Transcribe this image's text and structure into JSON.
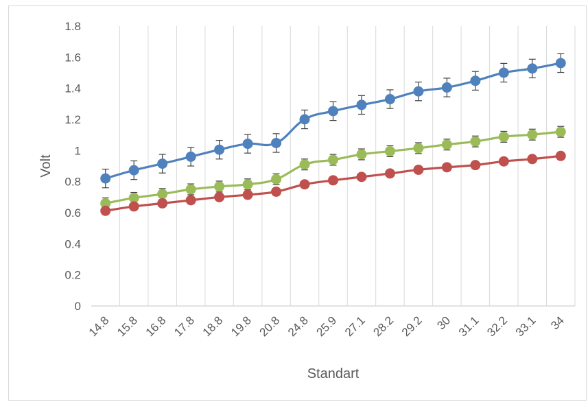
{
  "chart_data": {
    "type": "line",
    "title": "",
    "xlabel": "Standart",
    "ylabel": "Volt",
    "categories": [
      "14.8",
      "15.8",
      "16.8",
      "17.8",
      "18.8",
      "19.8",
      "20.8",
      "24.8",
      "25.9",
      "27.1",
      "28.2",
      "29.2",
      "30",
      "31.1",
      "32.2",
      "33.1",
      "34"
    ],
    "ylim": [
      0,
      1.8
    ],
    "yticks": [
      "0",
      "0.2",
      "0.4",
      "0.6",
      "0.8",
      "1",
      "1.2",
      "1.4",
      "1.6",
      "1.8"
    ],
    "grid": "vertical",
    "legend": "none",
    "series": [
      {
        "color": "#4f81bd",
        "values": [
          0.82,
          0.873,
          0.915,
          0.96,
          1.005,
          1.043,
          1.048,
          1.2,
          1.253,
          1.293,
          1.33,
          1.38,
          1.405,
          1.448,
          1.5,
          1.527,
          1.562
        ],
        "error": [
          0.06,
          0.06,
          0.06,
          0.06,
          0.06,
          0.06,
          0.06,
          0.06,
          0.06,
          0.06,
          0.06,
          0.06,
          0.06,
          0.06,
          0.06,
          0.06,
          0.06
        ]
      },
      {
        "color": "#9bbb59",
        "values": [
          0.66,
          0.695,
          0.72,
          0.75,
          0.768,
          0.782,
          0.815,
          0.91,
          0.94,
          0.975,
          0.995,
          1.015,
          1.038,
          1.058,
          1.088,
          1.102,
          1.12
        ],
        "error": [
          0.035,
          0.035,
          0.035,
          0.035,
          0.035,
          0.035,
          0.035,
          0.035,
          0.035,
          0.035,
          0.035,
          0.035,
          0.035,
          0.035,
          0.035,
          0.035,
          0.035
        ]
      },
      {
        "color": "#c0504d",
        "values": [
          0.612,
          0.64,
          0.66,
          0.68,
          0.7,
          0.715,
          0.735,
          0.782,
          0.808,
          0.83,
          0.852,
          0.876,
          0.892,
          0.906,
          0.93,
          0.945,
          0.965
        ],
        "error": [
          0,
          0,
          0,
          0,
          0,
          0,
          0,
          0,
          0,
          0,
          0,
          0,
          0,
          0,
          0,
          0,
          0
        ]
      }
    ]
  }
}
